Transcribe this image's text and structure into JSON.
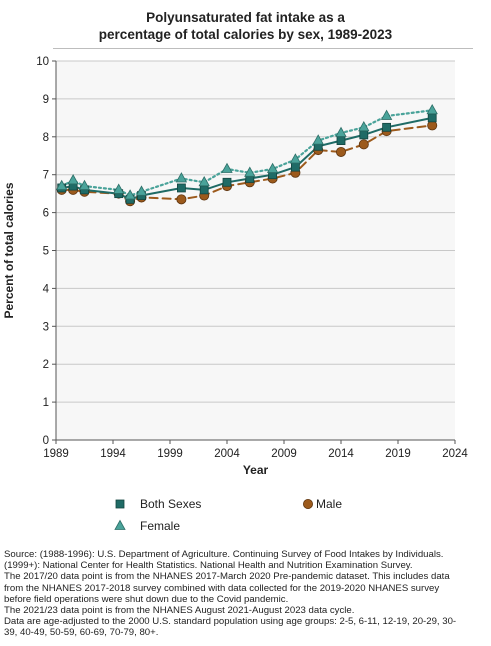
{
  "chart_data": {
    "type": "line",
    "title_lines": [
      "Polyunsaturated fat intake as a",
      "percentage of total calories by sex, 1989-2023"
    ],
    "xlabel": "Year",
    "ylabel": "Percent of total calories",
    "xlim": [
      1989,
      2024
    ],
    "ylim": [
      0,
      10
    ],
    "xticks": [
      1989,
      1994,
      1999,
      2004,
      2009,
      2014,
      2019,
      2024
    ],
    "yticks": [
      0,
      1,
      2,
      3,
      4,
      5,
      6,
      7,
      8,
      9,
      10
    ],
    "grid": true,
    "legend_position": "bottom",
    "series": [
      {
        "name": "Both Sexes",
        "color": "#1f6b66",
        "line_style": "solid",
        "marker": "square",
        "points": [
          [
            1989.5,
            6.65
          ],
          [
            1990.5,
            6.7
          ],
          [
            1991.5,
            6.6
          ],
          [
            1994.5,
            6.5
          ],
          [
            1995.5,
            6.35
          ],
          [
            1996.5,
            6.45
          ],
          [
            2000,
            6.65
          ],
          [
            2002,
            6.6
          ],
          [
            2004,
            6.8
          ],
          [
            2006,
            6.9
          ],
          [
            2008,
            7.0
          ],
          [
            2010,
            7.2
          ],
          [
            2012,
            7.75
          ],
          [
            2014,
            7.9
          ],
          [
            2016,
            8.05
          ],
          [
            2018,
            8.25
          ],
          [
            2022,
            8.5
          ]
        ]
      },
      {
        "name": "Male",
        "color": "#9c5a1c",
        "line_style": "dashed",
        "marker": "circle",
        "points": [
          [
            1989.5,
            6.6
          ],
          [
            1990.5,
            6.6
          ],
          [
            1991.5,
            6.55
          ],
          [
            1994.5,
            6.5
          ],
          [
            1995.5,
            6.3
          ],
          [
            1996.5,
            6.4
          ],
          [
            2000,
            6.35
          ],
          [
            2002,
            6.45
          ],
          [
            2004,
            6.7
          ],
          [
            2006,
            6.8
          ],
          [
            2008,
            6.9
          ],
          [
            2010,
            7.05
          ],
          [
            2012,
            7.65
          ],
          [
            2014,
            7.6
          ],
          [
            2016,
            7.8
          ],
          [
            2018,
            8.15
          ],
          [
            2022,
            8.3
          ]
        ]
      },
      {
        "name": "Female",
        "color": "#4aa39a",
        "line_style": "dotted",
        "marker": "triangle",
        "points": [
          [
            1989.5,
            6.7
          ],
          [
            1990.5,
            6.85
          ],
          [
            1991.5,
            6.7
          ],
          [
            1994.5,
            6.6
          ],
          [
            1995.5,
            6.45
          ],
          [
            1996.5,
            6.55
          ],
          [
            2000,
            6.9
          ],
          [
            2002,
            6.8
          ],
          [
            2004,
            7.15
          ],
          [
            2006,
            7.05
          ],
          [
            2008,
            7.15
          ],
          [
            2010,
            7.4
          ],
          [
            2012,
            7.9
          ],
          [
            2014,
            8.1
          ],
          [
            2016,
            8.25
          ],
          [
            2018,
            8.55
          ],
          [
            2022,
            8.7
          ]
        ]
      }
    ]
  },
  "legend": {
    "both": "Both Sexes",
    "male": "Male",
    "female": "Female"
  },
  "footer": {
    "lines": [
      "Source: (1988-1996): U.S. Department of Agriculture. Continuing Survey of Food Intakes by Individuals.",
      "(1999+): National Center for Health Statistics. National Health and Nutrition Examination Survey.",
      "The 2017/20 data point is from the NHANES 2017-March 2020 Pre-pandemic dataset. This includes data",
      "from the NHANES 2017-2018 survey combined with data collected for the 2019-2020 NHANES survey",
      "before field operations were shut down due to the Covid pandemic.",
      "The 2021/23 data point is from the NHANES August 2021-August 2023 data cycle.",
      "Data are age-adjusted to the 2000 U.S. standard population using age groups: 2-5, 6-11, 12-19, 20-29, 30-",
      "39, 40-49, 50-59, 60-69, 70-79, 80+."
    ]
  }
}
